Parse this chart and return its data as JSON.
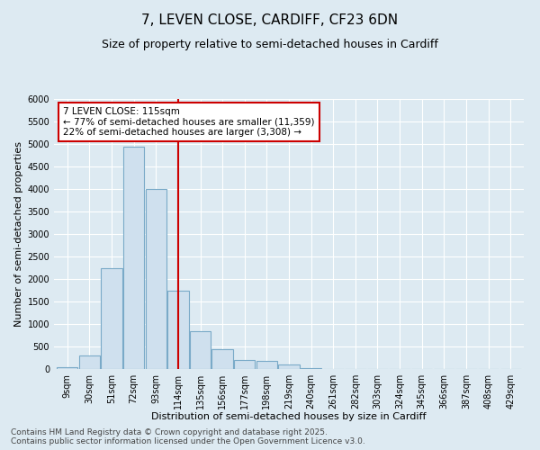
{
  "title": "7, LEVEN CLOSE, CARDIFF, CF23 6DN",
  "subtitle": "Size of property relative to semi-detached houses in Cardiff",
  "xlabel": "Distribution of semi-detached houses by size in Cardiff",
  "ylabel": "Number of semi-detached properties",
  "categories": [
    "9sqm",
    "30sqm",
    "51sqm",
    "72sqm",
    "93sqm",
    "114sqm",
    "135sqm",
    "156sqm",
    "177sqm",
    "198sqm",
    "219sqm",
    "240sqm",
    "261sqm",
    "282sqm",
    "303sqm",
    "324sqm",
    "345sqm",
    "366sqm",
    "387sqm",
    "408sqm",
    "429sqm"
  ],
  "values": [
    50,
    300,
    2250,
    4950,
    4000,
    1750,
    850,
    450,
    200,
    175,
    100,
    20,
    5,
    0,
    0,
    0,
    0,
    0,
    0,
    0,
    0
  ],
  "bar_color": "#cfe0ee",
  "bar_edge_color": "#7aaac8",
  "vline_pos": 5.5,
  "vline_color": "#cc0000",
  "annotation_text": "7 LEVEN CLOSE: 115sqm\n← 77% of semi-detached houses are smaller (11,359)\n22% of semi-detached houses are larger (3,308) →",
  "annotation_box_facecolor": "#ffffff",
  "annotation_box_edgecolor": "#cc0000",
  "ylim": [
    0,
    6000
  ],
  "yticks": [
    0,
    500,
    1000,
    1500,
    2000,
    2500,
    3000,
    3500,
    4000,
    4500,
    5000,
    5500,
    6000
  ],
  "bg_color": "#ddeaf2",
  "grid_color": "#ffffff",
  "footer": "Contains HM Land Registry data © Crown copyright and database right 2025.\nContains public sector information licensed under the Open Government Licence v3.0.",
  "title_fontsize": 11,
  "subtitle_fontsize": 9,
  "axis_label_fontsize": 8,
  "tick_fontsize": 7,
  "annotation_fontsize": 7.5,
  "footer_fontsize": 6.5
}
